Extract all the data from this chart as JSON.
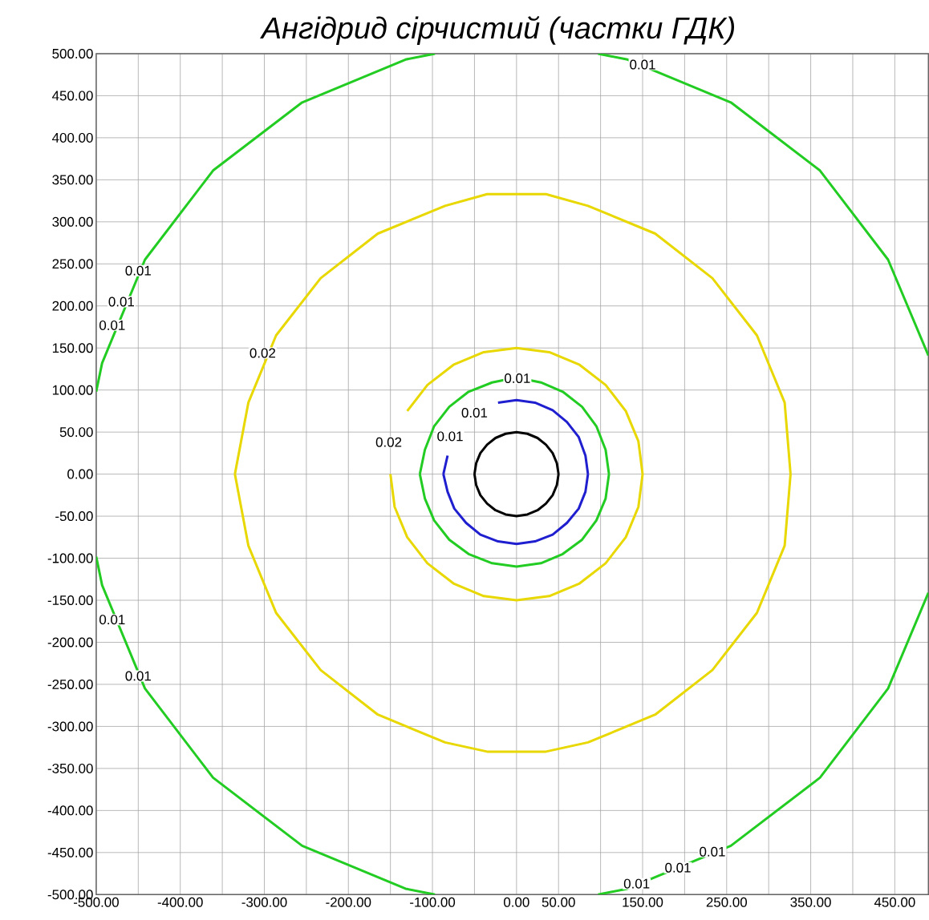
{
  "chart_data": {
    "type": "line",
    "title": "Ангідрид сірчистий (частки ГДК)",
    "xlim": [
      -500,
      490
    ],
    "ylim": [
      -500,
      500
    ],
    "xticks": [
      {
        "value": -500,
        "label": "-500.00"
      },
      {
        "value": -450,
        "label": null
      },
      {
        "value": -400,
        "label": "-400.00"
      },
      {
        "value": -350,
        "label": null
      },
      {
        "value": -300,
        "label": "-300.00"
      },
      {
        "value": -250,
        "label": null
      },
      {
        "value": -200,
        "label": "-200.00"
      },
      {
        "value": -150,
        "label": null
      },
      {
        "value": -100,
        "label": "-100.00"
      },
      {
        "value": -50,
        "label": null
      },
      {
        "value": 0,
        "label": "0.00"
      },
      {
        "value": 50,
        "label": "50.00"
      },
      {
        "value": 100,
        "label": null
      },
      {
        "value": 150,
        "label": "150.00"
      },
      {
        "value": 200,
        "label": null
      },
      {
        "value": 250,
        "label": "250.00"
      },
      {
        "value": 300,
        "label": null
      },
      {
        "value": 350,
        "label": "350.00"
      },
      {
        "value": 400,
        "label": null
      },
      {
        "value": 450,
        "label": "450.00"
      }
    ],
    "yticks": [
      {
        "value": -500,
        "label": "-500.00"
      },
      {
        "value": -450,
        "label": "-450.00"
      },
      {
        "value": -400,
        "label": "-400.00"
      },
      {
        "value": -350,
        "label": "-350.00"
      },
      {
        "value": -300,
        "label": "-300.00"
      },
      {
        "value": -250,
        "label": "-250.00"
      },
      {
        "value": -200,
        "label": "-200.00"
      },
      {
        "value": -150,
        "label": "-150.00"
      },
      {
        "value": -100,
        "label": "-100.00"
      },
      {
        "value": -50,
        "label": "-50.00"
      },
      {
        "value": 0,
        "label": "0.00"
      },
      {
        "value": 50,
        "label": "50.00"
      },
      {
        "value": 100,
        "label": "100.00"
      },
      {
        "value": 150,
        "label": "150.00"
      },
      {
        "value": 200,
        "label": "200.00"
      },
      {
        "value": 250,
        "label": "250.00"
      },
      {
        "value": 300,
        "label": "300.00"
      },
      {
        "value": 350,
        "label": "350.00"
      },
      {
        "value": 400,
        "label": "400.00"
      },
      {
        "value": 450,
        "label": "450.00"
      },
      {
        "value": 500,
        "label": "500.00"
      }
    ],
    "grid": true,
    "marker": "none",
    "line_style": "solid",
    "series": [
      {
        "color": "#22cc22",
        "x": [
          -97,
          -132,
          -255,
          -361,
          -442,
          -493,
          -500,
          null,
          97,
          132,
          255,
          361,
          442,
          490,
          null,
          490,
          442,
          361,
          255,
          132,
          97,
          null,
          -97,
          -132,
          -255,
          -361,
          -442,
          -493,
          -500
        ],
        "values": [
          500,
          493,
          442,
          361,
          255,
          132,
          98,
          null,
          500,
          493,
          442,
          361,
          255,
          141,
          null,
          -141,
          -255,
          -361,
          -442,
          -493,
          -500,
          null,
          -500,
          -493,
          -442,
          -361,
          -255,
          -132,
          -98
        ]
      },
      {
        "color": "#e8d800",
        "x": [
          326,
          319,
          286,
          233,
          165,
          85,
          35,
          0,
          -35,
          -85,
          -165,
          -233,
          -286,
          -319,
          -335,
          null,
          -335,
          -319,
          -286,
          -233,
          -165,
          -85,
          -35,
          0,
          35,
          85,
          165,
          233,
          286,
          319,
          326
        ],
        "values": [
          0,
          85,
          165,
          233,
          286,
          319,
          333,
          333,
          333,
          319,
          286,
          233,
          165,
          85,
          0,
          null,
          0,
          -85,
          -165,
          -233,
          -286,
          -319,
          -330,
          -330,
          -330,
          -319,
          -286,
          -233,
          -165,
          -85,
          0
        ]
      },
      {
        "color": "#e8d800",
        "x": [
          150,
          145,
          130,
          106,
          75,
          39,
          0,
          -39,
          -75,
          -106,
          -130,
          -145,
          -150,
          null,
          -150,
          -145,
          -130,
          -106,
          -75,
          -39,
          0,
          39,
          75,
          106,
          130,
          145,
          150
        ],
        "values": [
          0,
          39,
          75,
          106,
          130,
          145,
          150,
          145,
          130,
          106,
          75,
          null,
          0,
          null,
          0,
          -39,
          -75,
          -106,
          -130,
          -145,
          -150,
          -145,
          -130,
          -106,
          -75,
          -39,
          0
        ]
      },
      {
        "color": "#22cc22",
        "x": [
          110,
          106,
          95,
          78,
          55,
          29,
          0,
          -29,
          -57,
          -80,
          -98,
          -109,
          -115,
          null,
          -115,
          -109,
          -98,
          -80,
          -57,
          -29,
          0,
          29,
          55,
          78,
          95,
          106,
          110
        ],
        "values": [
          0,
          29,
          57,
          80,
          98,
          109,
          115,
          109,
          98,
          80,
          57,
          29,
          0,
          null,
          0,
          -29,
          -55,
          -78,
          -95,
          -106,
          -110,
          -106,
          -95,
          -78,
          -55,
          -29,
          0
        ]
      },
      {
        "color": "#1f1fd0",
        "x": [
          85,
          82,
          74,
          60,
          43,
          22,
          0,
          -22,
          -43,
          -60,
          -74,
          -82,
          -87,
          null,
          -87,
          -82,
          -74,
          -60,
          -43,
          -22,
          0,
          22,
          43,
          60,
          74,
          82,
          85
        ],
        "values": [
          0,
          22,
          44,
          62,
          76,
          85,
          88,
          85,
          null,
          null,
          null,
          22,
          0,
          null,
          0,
          -21,
          -41,
          -58,
          -72,
          -80,
          -83,
          -80,
          -72,
          -58,
          -41,
          -21,
          0
        ]
      },
      {
        "color": "#000000",
        "x": [
          50,
          48,
          43,
          35,
          25,
          13,
          0,
          -13,
          -25,
          -35,
          -43,
          -48,
          -50,
          null,
          -50,
          -48,
          -43,
          -35,
          -25,
          -13,
          0,
          13,
          25,
          35,
          43,
          48,
          50
        ],
        "values": [
          0,
          13,
          25,
          35,
          43,
          48,
          50,
          48,
          43,
          35,
          25,
          13,
          0,
          null,
          0,
          -13,
          -25,
          -35,
          -43,
          -48,
          -50,
          -48,
          -43,
          -35,
          -25,
          -13,
          0
        ]
      }
    ],
    "annotations": [
      {
        "text": "0.01",
        "x": 150,
        "y": 487
      },
      {
        "text": "0.01",
        "x": -450,
        "y": 242
      },
      {
        "text": "0.01",
        "x": -470,
        "y": 205
      },
      {
        "text": "0.01",
        "x": -481,
        "y": 177
      },
      {
        "text": "0.02",
        "x": -302,
        "y": 144
      },
      {
        "text": "0.01",
        "x": 1,
        "y": 114
      },
      {
        "text": "0.01",
        "x": -50,
        "y": 73
      },
      {
        "text": "0.01",
        "x": -79,
        "y": 45
      },
      {
        "text": "0.02",
        "x": -152,
        "y": 38
      },
      {
        "text": "0.01",
        "x": -481,
        "y": -173
      },
      {
        "text": "0.01",
        "x": -450,
        "y": -240
      },
      {
        "text": "0.01",
        "x": 233,
        "y": -449
      },
      {
        "text": "0.01",
        "x": 192,
        "y": -468
      },
      {
        "text": "0.01",
        "x": 143,
        "y": -487
      }
    ]
  }
}
